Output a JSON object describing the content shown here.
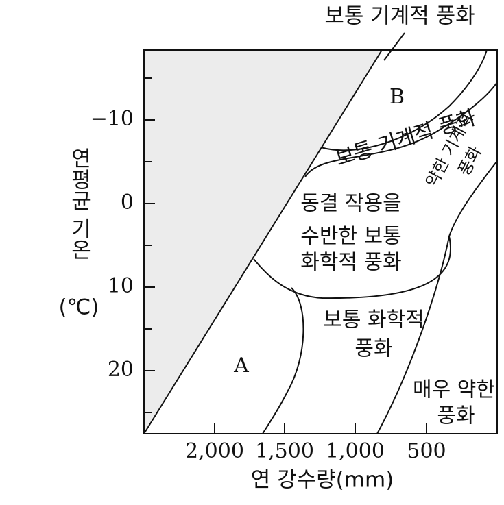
{
  "header": {
    "top_label": "보통 기계적 풍화"
  },
  "y_axis": {
    "label": [
      "연평균 기온",
      "(℃)"
    ],
    "ticks": [
      "−10",
      "0",
      "10",
      "20"
    ]
  },
  "x_axis": {
    "label": "연 강수량(mm)",
    "ticks": [
      "2,000",
      "1,500",
      "1,000",
      "500"
    ]
  },
  "regions": [
    {
      "lines": [
        "A"
      ]
    },
    {
      "lines": [
        "B"
      ]
    },
    {
      "lines": [
        "보통 기계적 풍화"
      ]
    },
    {
      "lines": [
        "약한 기계적",
        "풍화"
      ]
    },
    {
      "lines": [
        "동결 작용을",
        "수반한 보통",
        "화학적 풍화"
      ]
    },
    {
      "lines": [
        "보통 화학적",
        "풍화"
      ]
    },
    {
      "lines": [
        "매우 약한",
        "풍화"
      ]
    }
  ]
}
